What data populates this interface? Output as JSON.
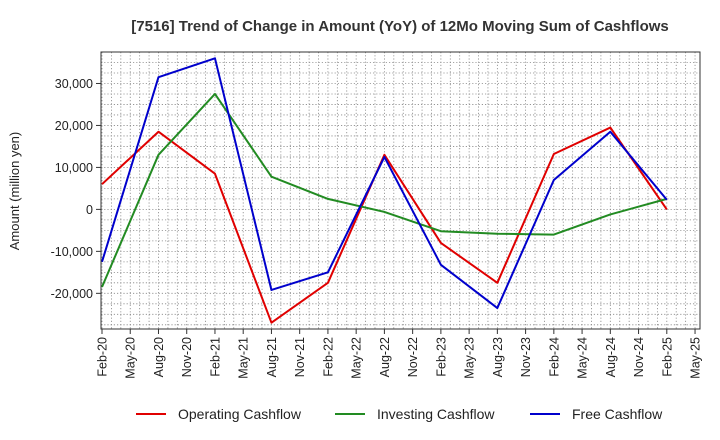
{
  "chart_data": {
    "type": "line",
    "title": "[7516]  Trend of Change in Amount (YoY) of 12Mo Moving Sum of Cashflows",
    "xlabel": "",
    "ylabel": "Amount (million yen)",
    "categories": [
      "Feb-20",
      "May-20",
      "Aug-20",
      "Nov-20",
      "Feb-21",
      "May-21",
      "Aug-21",
      "Nov-21",
      "Feb-22",
      "May-22",
      "Aug-22",
      "Nov-22",
      "Feb-23",
      "May-23",
      "Aug-23",
      "Nov-23",
      "Feb-24",
      "May-24",
      "Aug-24",
      "Nov-24",
      "Feb-25",
      "May-25"
    ],
    "ylim": [
      -28500,
      37500
    ],
    "yticks": [
      -20000,
      -10000,
      0,
      10000,
      20000,
      30000
    ],
    "ytick_labels": [
      "-20,000",
      "-10,000",
      "0",
      "10,000",
      "20,000",
      "30,000"
    ],
    "grid": true,
    "legend_position": "bottom",
    "series": [
      {
        "name": "Operating Cashflow",
        "color": "#e00000",
        "x": [
          0,
          2,
          4,
          6,
          8,
          10,
          12,
          14,
          16,
          18,
          20
        ],
        "values": [
          6000,
          18500,
          8500,
          -27000,
          -17500,
          13000,
          -8000,
          -17500,
          13200,
          19500,
          0
        ]
      },
      {
        "name": "Investing Cashflow",
        "color": "#228b22",
        "x": [
          0,
          2,
          4,
          6,
          8,
          10,
          12,
          14,
          16,
          18,
          20
        ],
        "values": [
          -18500,
          13000,
          27500,
          7800,
          2500,
          -600,
          -5200,
          -5800,
          -6000,
          -1200,
          2500
        ]
      },
      {
        "name": "Free Cashflow",
        "color": "#0000cc",
        "x": [
          0,
          2,
          4,
          6,
          8,
          10,
          12,
          14,
          16,
          18,
          20
        ],
        "values": [
          -12500,
          31500,
          36000,
          -19200,
          -15000,
          12500,
          -13200,
          -23500,
          7000,
          18500,
          2300
        ]
      }
    ]
  }
}
